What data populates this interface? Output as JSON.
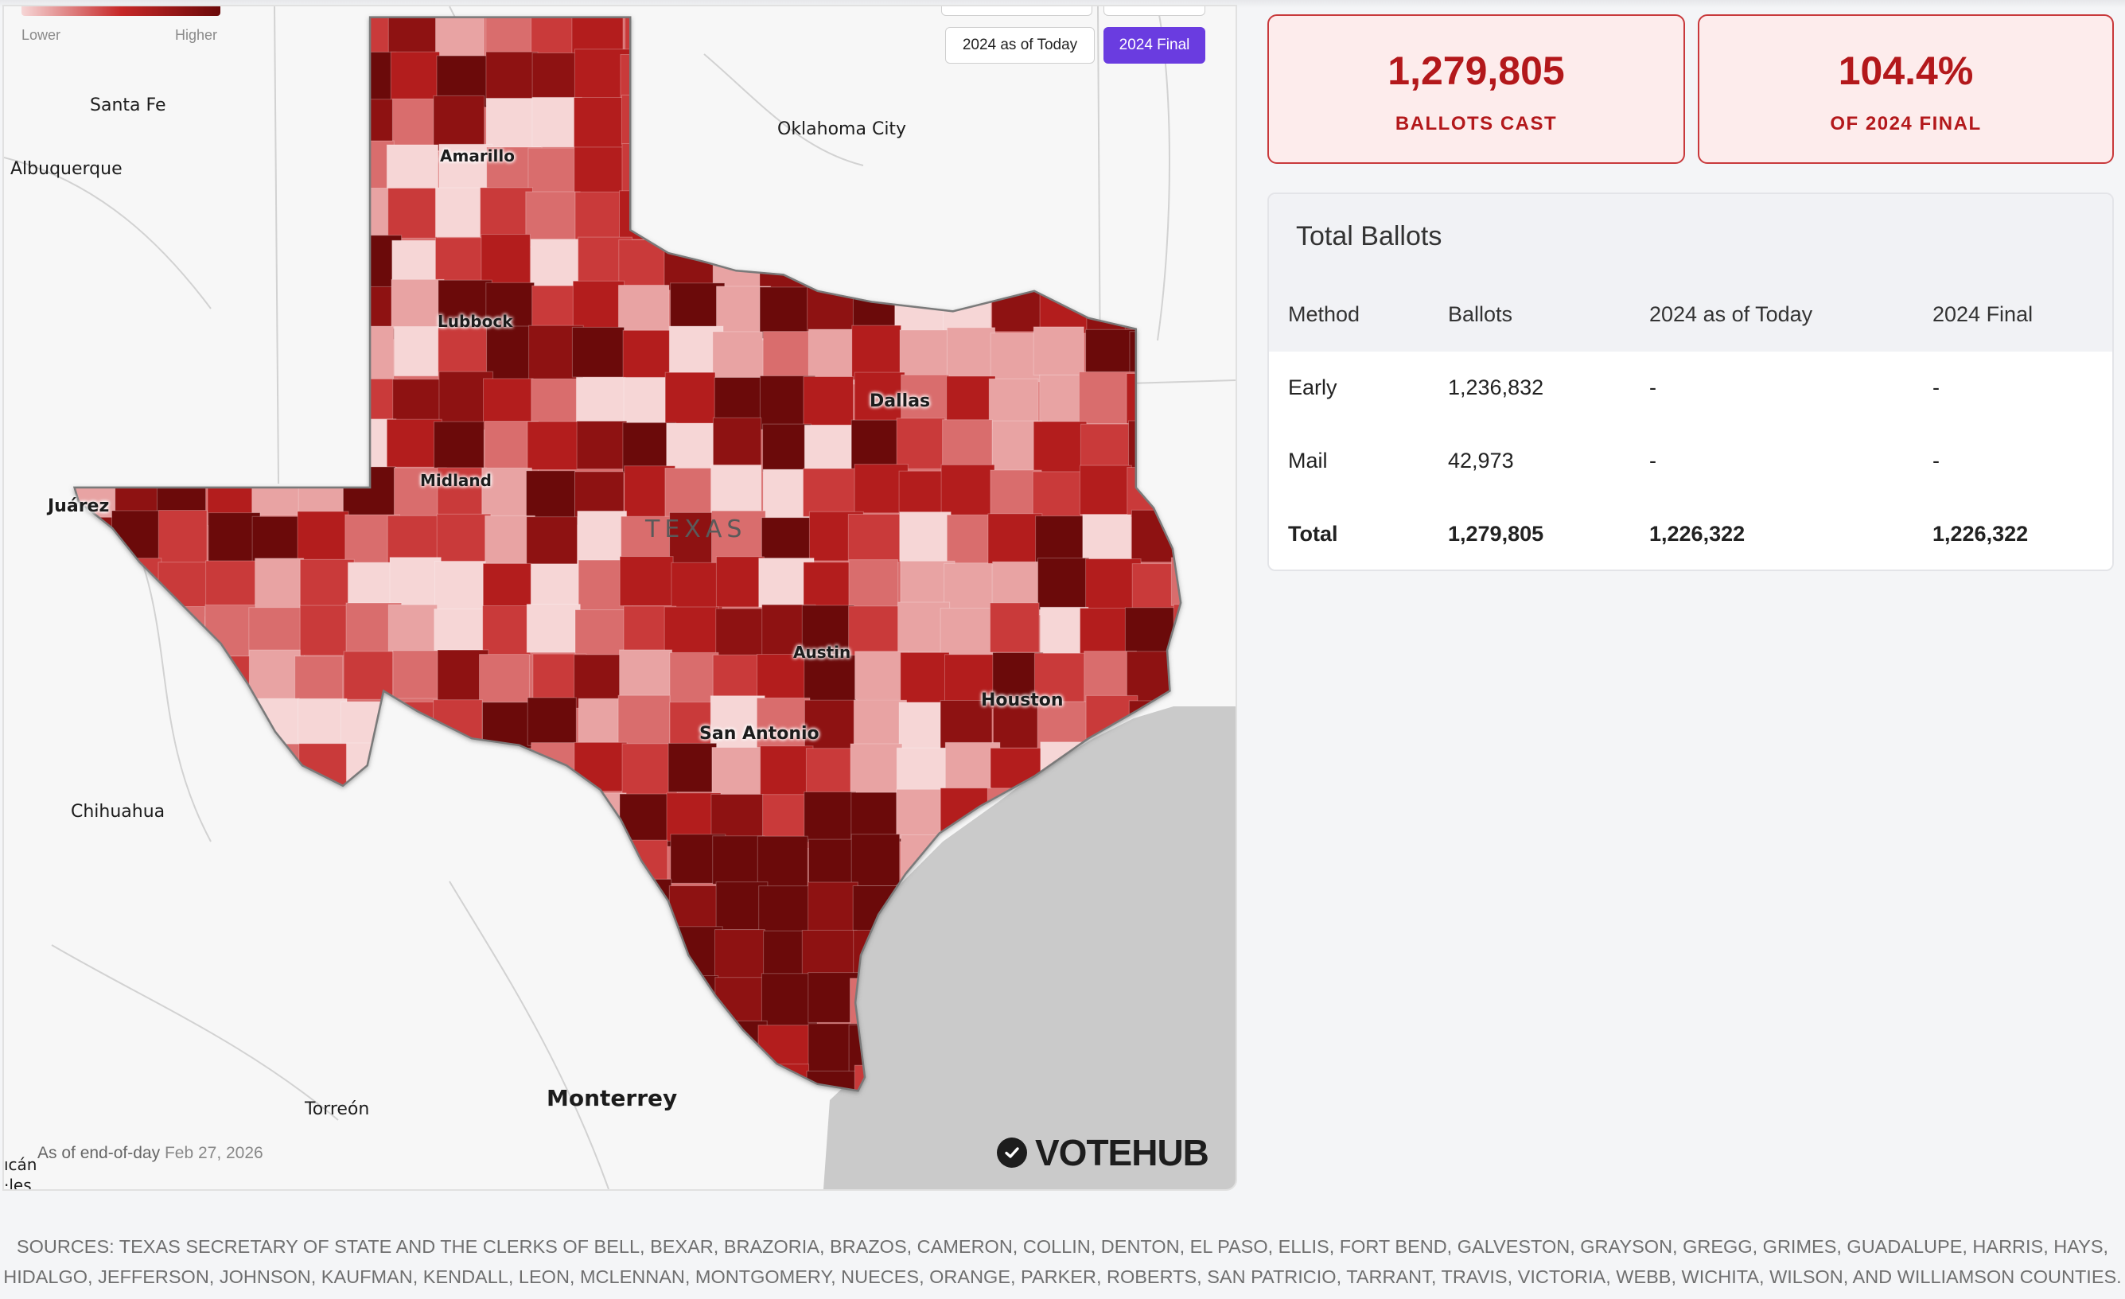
{
  "legend": {
    "low_label": "Lower",
    "high_label": "Higher"
  },
  "toggles": [
    {
      "label": "2024 as of Today",
      "active": false
    },
    {
      "label": "2024 Final",
      "active": true
    }
  ],
  "map": {
    "state_label": "TEXAS",
    "cities": {
      "santa_fe": "Santa Fe",
      "albuquerque": "Albuquerque",
      "oklahoma_city": "Oklahoma City",
      "amarillo": "Amarillo",
      "lubbock": "Lubbock",
      "dallas": "Dallas",
      "midland": "Midland",
      "juarez": "Juárez",
      "austin": "Austin",
      "houston": "Houston",
      "san_antonio": "San Antonio",
      "chihuahua": "Chihuahua",
      "torreon": "Torreón",
      "monterrey": "Monterrey",
      "edge_1": "ıcán",
      "edge_2": "·les"
    },
    "colors": [
      "#f6d6d6",
      "#e8a3a3",
      "#d96d6d",
      "#c93a3a",
      "#b31d1d",
      "#8e1212",
      "#6b0a0a"
    ],
    "asof_prefix": "As of end-of-day",
    "asof_date": "Feb 27, 2026",
    "brand": "VOTEHUB"
  },
  "stats": {
    "ballots_cast": {
      "value": "1,279,805",
      "label": "BALLOTS CAST"
    },
    "pct_final": {
      "value": "104.4%",
      "label": "OF 2024 FINAL"
    }
  },
  "table": {
    "title": "Total Ballots",
    "columns": [
      "Method",
      "Ballots",
      "2024 as of Today",
      "2024 Final"
    ],
    "rows": [
      {
        "method": "Early",
        "ballots": "1,236,832",
        "as_of_today": "-",
        "final": "-"
      },
      {
        "method": "Mail",
        "ballots": "42,973",
        "as_of_today": "-",
        "final": "-"
      },
      {
        "method": "Total",
        "ballots": "1,279,805",
        "as_of_today": "1,226,322",
        "final": "1,226,322"
      }
    ]
  },
  "sources": {
    "line1": "SOURCES: TEXAS SECRETARY OF STATE AND THE CLERKS OF BELL, BEXAR, BRAZORIA, BRAZOS, CAMERON, COLLIN, DENTON, EL PASO, ELLIS, FORT BEND, GALVESTON, GRAYSON, GREGG, GRIMES, GUADALUPE, HARRIS, HAYS,",
    "line2": "HIDALGO, JEFFERSON, JOHNSON, KAUFMAN, KENDALL, LEON, MCLENNAN, MONTGOMERY, NUECES, ORANGE, PARKER, ROBERTS, SAN PATRICIO, TARRANT, TRAVIS, VICTORIA, WEBB, WICHITA, WILSON, AND WILLIAMSON COUNTIES."
  }
}
